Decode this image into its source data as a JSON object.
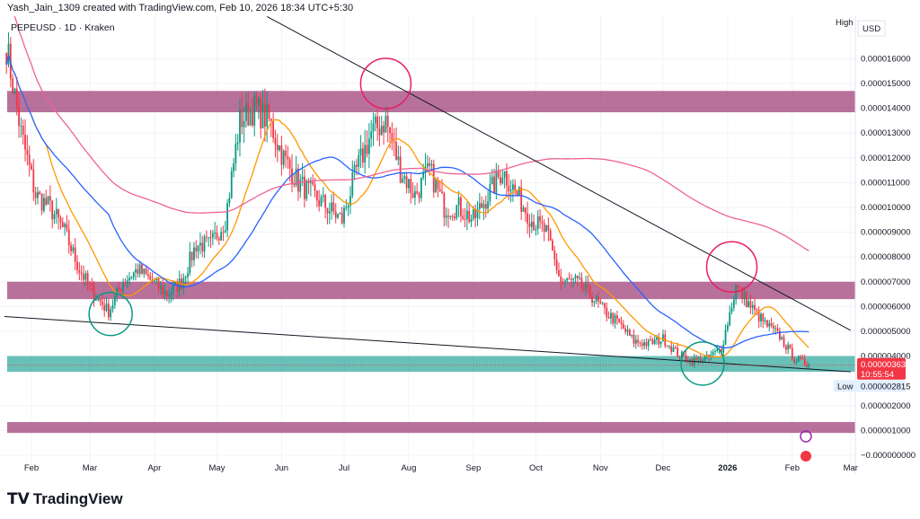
{
  "header": "Yash_Jain_1309 created with TradingView.com, Feb 10, 2026 18:34 UTC+5:30",
  "symbol": "PEPEUSD · 1D · Kraken",
  "axis_mode": "High",
  "currency": "USD",
  "logo": "TradingView",
  "chart_data": {
    "type": "candlestick",
    "price_unit": "USD",
    "ylim": [
      0,
      1.75e-05
    ],
    "y_ticks": [
      0,
      1e-06,
      2e-06,
      4e-06,
      5e-06,
      6e-06,
      7e-06,
      8e-06,
      9e-06,
      1e-05,
      1.1e-05,
      1.2e-05,
      1.3e-05,
      1.4e-05,
      1.5e-05,
      1.6e-05
    ],
    "y_tick_labels": [
      "−0.000000000",
      "0.000001000",
      "0.000002000",
      "0.000004000",
      "0.000005000",
      "0.000006000",
      "0.000007000",
      "0.000008000",
      "0.000009000",
      "0.000010000",
      "0.000011000",
      "0.000012000",
      "0.000013000",
      "0.000014000",
      "0.000015000",
      "0.000016000"
    ],
    "x_labels": [
      {
        "date": "2025-02-01",
        "label": "Feb"
      },
      {
        "date": "2025-03-01",
        "label": "Mar"
      },
      {
        "date": "2025-04-01",
        "label": "Apr"
      },
      {
        "date": "2025-05-01",
        "label": "May"
      },
      {
        "date": "2025-06-01",
        "label": "Jun"
      },
      {
        "date": "2025-07-01",
        "label": "Jul"
      },
      {
        "date": "2025-08-01",
        "label": "Aug"
      },
      {
        "date": "2025-09-01",
        "label": "Sep"
      },
      {
        "date": "2025-10-01",
        "label": "Oct"
      },
      {
        "date": "2025-11-01",
        "label": "Nov"
      },
      {
        "date": "2025-12-01",
        "label": "Dec"
      },
      {
        "date": "2026-01-01",
        "label": "2026"
      },
      {
        "date": "2026-02-01",
        "label": "Feb"
      },
      {
        "date": "2026-03-01",
        "label": "Mar"
      }
    ],
    "weekly_closes_start": "2025-01-20",
    "weekly_closes": [
      16.5,
      13,
      10.5,
      10,
      9,
      7.5,
      6.5,
      5.8,
      7,
      7.5,
      7,
      6.5,
      7,
      8.5,
      8.5,
      9.5,
      13.5,
      14,
      13.5,
      12,
      11,
      10.5,
      10,
      9.5,
      11.5,
      13,
      13.5,
      11.5,
      10.5,
      11.5,
      10,
      10,
      9.5,
      10.5,
      11.5,
      10.5,
      9.5,
      9,
      7,
      7,
      6.5,
      5.8,
      5.3,
      4.6,
      4.5,
      4.7,
      4.1,
      3.8,
      3.9,
      4.3,
      6.8,
      6,
      5.3,
      4.8,
      3.9,
      3.632
    ],
    "weekly_closes_scale": 1e-06,
    "last_price": "0.000003632",
    "countdown": "10:55:54",
    "low_label": "Low",
    "low_value": "0.000002815",
    "moving_averages": [
      {
        "color": "#ff9800"
      },
      {
        "color": "#2962ff"
      },
      {
        "color": "#f06292"
      }
    ],
    "zones": [
      {
        "from": 1.384e-05,
        "to": 1.47e-05,
        "color": "#a0427a"
      },
      {
        "from": 6.3e-06,
        "to": 7e-06,
        "color": "#a0427a"
      },
      {
        "from": 9e-07,
        "to": 1.34e-06,
        "color": "#a0427a"
      },
      {
        "from": 3.37e-06,
        "to": 4e-06,
        "color": "#26a69a"
      }
    ],
    "trendlines": [
      {
        "from": [
          "2025-05-25",
          1.77e-05
        ],
        "to": [
          "2026-03-01",
          5.04e-06
        ]
      },
      {
        "from": [
          "2025-01-19",
          5.6e-06
        ],
        "to": [
          "2026-03-01",
          3.37e-06
        ]
      }
    ],
    "circles": [
      {
        "date": "2025-07-21",
        "price": 1.5e-05,
        "color": "#e91e63"
      },
      {
        "date": "2026-01-03",
        "price": 7.6e-06,
        "color": "#e91e63"
      },
      {
        "date": "2025-03-11",
        "price": 5.7e-06,
        "color": "#089981"
      },
      {
        "date": "2025-12-20",
        "price": 3.7e-06,
        "color": "#089981"
      }
    ],
    "colors": {
      "up": "#089981",
      "down": "#f23645"
    }
  }
}
